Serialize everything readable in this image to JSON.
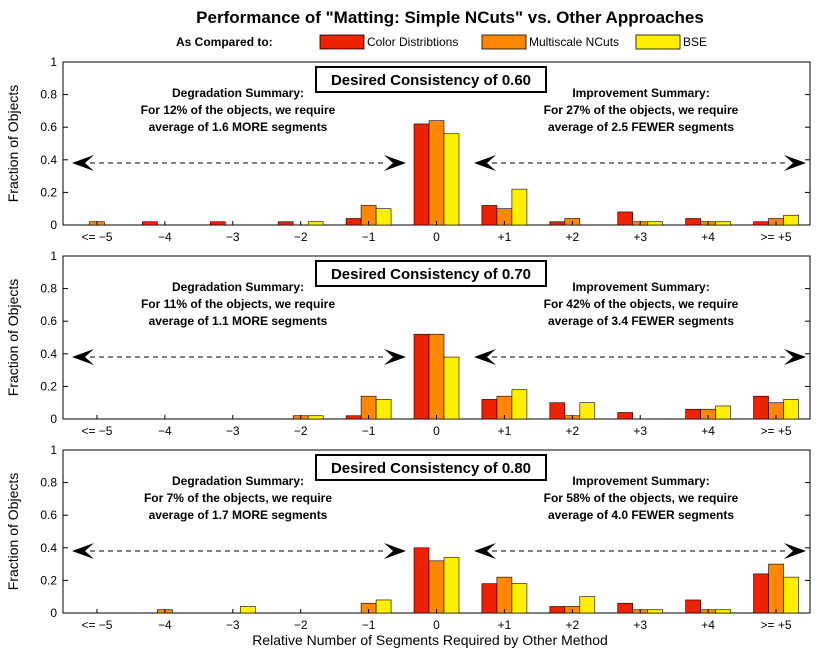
{
  "figure": {
    "title": "Performance of \"Matting: Simple NCuts\" vs. Other Approaches",
    "legend_heading": "As Compared to:",
    "xlabel": "Relative Number of Segments Required by Other Method"
  },
  "chart_data": [
    {
      "type": "bar",
      "box_title": "Desired Consistency of 0.60",
      "ylabel": "Fraction of Objects",
      "ylim": [
        0,
        1
      ],
      "yticks": [
        "0",
        "0.2",
        "0.4",
        "0.6",
        "0.8",
        "1"
      ],
      "categories": [
        "<= −5",
        "−4",
        "−3",
        "−2",
        "−1",
        "0",
        "+1",
        "+2",
        "+3",
        "+4",
        ">= +5"
      ],
      "series": [
        {
          "name": "Color Distribtions",
          "color": "#ee2200",
          "values": [
            0,
            0.02,
            0.02,
            0.02,
            0.04,
            0.62,
            0.12,
            0.02,
            0.08,
            0.04,
            0.02
          ]
        },
        {
          "name": "Multiscale NCuts",
          "color": "#ff8800",
          "values": [
            0.02,
            0,
            0,
            0,
            0.12,
            0.64,
            0.1,
            0.04,
            0.02,
            0.02,
            0.04
          ]
        },
        {
          "name": "BSE",
          "color": "#ffee00",
          "values": [
            0,
            0,
            0,
            0.02,
            0.1,
            0.56,
            0.22,
            0,
            0.02,
            0.02,
            0.06
          ]
        }
      ],
      "degradation": [
        "Degradation Summary:",
        "For 12% of the objects, we require",
        "average of 1.6 MORE segments"
      ],
      "improvement": [
        "Improvement Summary:",
        "For 27% of the objects, we require",
        "average of 2.5 FEWER segments"
      ]
    },
    {
      "type": "bar",
      "box_title": "Desired Consistency of 0.70",
      "ylabel": "Fraction of Objects",
      "ylim": [
        0,
        1
      ],
      "yticks": [
        "0",
        "0.2",
        "0.4",
        "0.6",
        "0.8",
        "1"
      ],
      "categories": [
        "<= −5",
        "−4",
        "−3",
        "−2",
        "−1",
        "0",
        "+1",
        "+2",
        "+3",
        "+4",
        ">= +5"
      ],
      "series": [
        {
          "name": "Color Distribtions",
          "color": "#ee2200",
          "values": [
            0,
            0,
            0,
            0,
            0.02,
            0.52,
            0.12,
            0.1,
            0.04,
            0.06,
            0.14
          ]
        },
        {
          "name": "Multiscale NCuts",
          "color": "#ff8800",
          "values": [
            0,
            0,
            0,
            0.02,
            0.14,
            0.52,
            0.14,
            0.02,
            0,
            0.06,
            0.1
          ]
        },
        {
          "name": "BSE",
          "color": "#ffee00",
          "values": [
            0,
            0,
            0,
            0.02,
            0.12,
            0.38,
            0.18,
            0.1,
            0,
            0.08,
            0.12
          ]
        }
      ],
      "degradation": [
        "Degradation Summary:",
        "For 11% of the objects, we require",
        "average of 1.1 MORE segments"
      ],
      "improvement": [
        "Improvement Summary:",
        "For 42% of the objects, we require",
        "average of 3.4 FEWER segments"
      ]
    },
    {
      "type": "bar",
      "box_title": "Desired Consistency of 0.80",
      "ylabel": "Fraction of Objects",
      "ylim": [
        0,
        1
      ],
      "yticks": [
        "0",
        "0.2",
        "0.4",
        "0.6",
        "0.8",
        "1"
      ],
      "categories": [
        "<= −5",
        "−4",
        "−3",
        "−2",
        "−1",
        "0",
        "+1",
        "+2",
        "+3",
        "+4",
        ">= +5"
      ],
      "series": [
        {
          "name": "Color Distribtions",
          "color": "#ee2200",
          "values": [
            0,
            0,
            0,
            0,
            0,
            0.4,
            0.18,
            0.04,
            0.06,
            0.08,
            0.24
          ]
        },
        {
          "name": "Multiscale NCuts",
          "color": "#ff8800",
          "values": [
            0,
            0.02,
            0,
            0,
            0.06,
            0.32,
            0.22,
            0.04,
            0.02,
            0.02,
            0.3
          ]
        },
        {
          "name": "BSE",
          "color": "#ffee00",
          "values": [
            0,
            0,
            0.04,
            0,
            0.08,
            0.34,
            0.18,
            0.1,
            0.02,
            0.02,
            0.22
          ]
        }
      ],
      "degradation": [
        "Degradation Summary:",
        "For 7% of the objects, we require",
        "average of 1.7 MORE segments"
      ],
      "improvement": [
        "Improvement Summary:",
        "For 58% of the objects, we require",
        "average of 4.0 FEWER segments"
      ]
    }
  ]
}
